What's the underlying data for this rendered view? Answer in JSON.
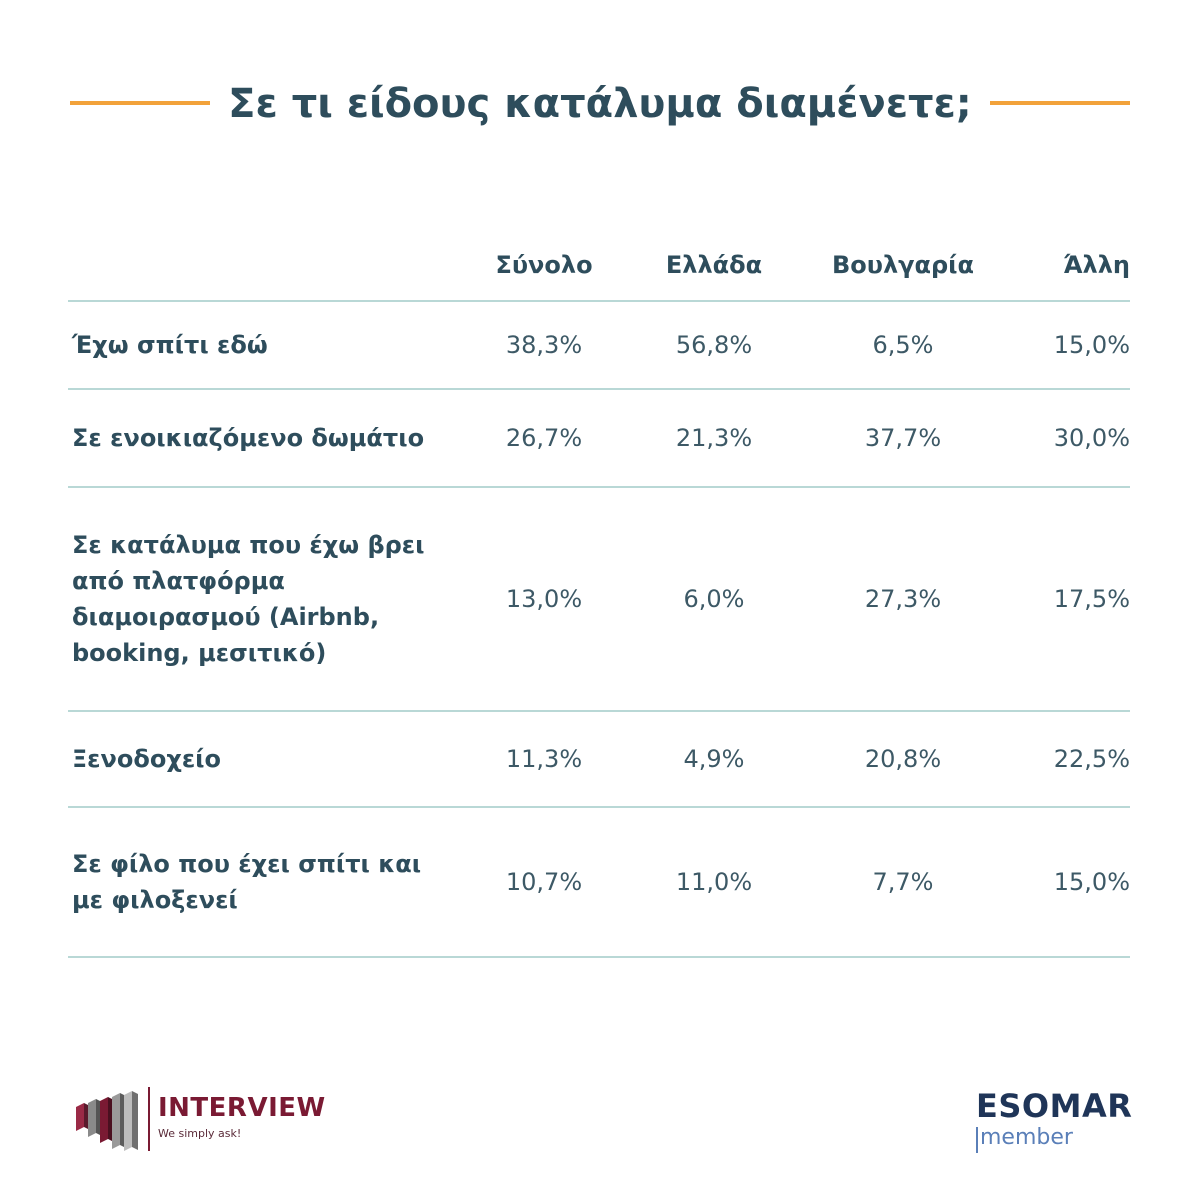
{
  "title": "Σε τι είδους κατάλυμα διαμένετε;",
  "chart_data": {
    "type": "table",
    "columns": [
      "Σύνολο",
      "Ελλάδα",
      "Βουλγαρία",
      "Άλλη"
    ],
    "rows": [
      {
        "label": "Έχω σπίτι εδώ",
        "values": [
          "38,3%",
          "56,8%",
          "6,5%",
          "15,0%"
        ]
      },
      {
        "label": "Σε ενοικιαζόμενο δωμάτιο",
        "values": [
          "26,7%",
          "21,3%",
          "37,7%",
          "30,0%"
        ]
      },
      {
        "label": "Σε κατάλυμα που έχω βρει\nαπό πλατφόρμα\nδιαμοιρασμού (Airbnb,\nbooking, μεσιτικό)",
        "values": [
          "13,0%",
          "6,0%",
          "27,3%",
          "17,5%"
        ]
      },
      {
        "label": "Ξενοδοχείο",
        "values": [
          "11,3%",
          "4,9%",
          "20,8%",
          "22,5%"
        ]
      },
      {
        "label": "Σε φίλο που έχει σπίτι και\nμε φιλοξενεί",
        "values": [
          "10,7%",
          "11,0%",
          "7,7%",
          "15,0%"
        ]
      }
    ]
  },
  "footer": {
    "left_brand": "INTERVIEW",
    "left_tagline": "We simply ask!",
    "right_brand": "ESOMAR",
    "right_sub": "member"
  },
  "colors": {
    "accent": "#f2a23a",
    "text": "#2e4d5c",
    "rule": "#b9d8d6",
    "brand_red": "#7a1a33",
    "esomar_blue": "#1f3558"
  }
}
